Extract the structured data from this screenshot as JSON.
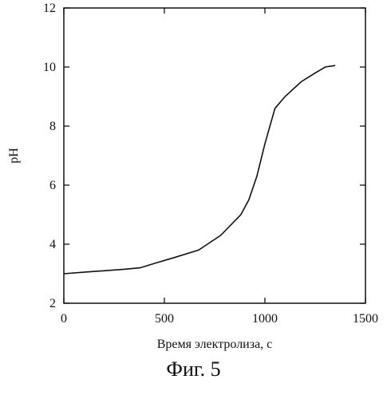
{
  "chart_data": {
    "type": "line",
    "xlabel": "Время электролиза, с",
    "ylabel": "pH",
    "xlim": [
      0,
      1500
    ],
    "ylim": [
      2,
      12
    ],
    "xticks": [
      0,
      500,
      1000,
      1500
    ],
    "yticks": [
      2,
      4,
      6,
      8,
      10,
      12
    ],
    "grid": false,
    "series": [
      {
        "x": [
          0,
          100,
          200,
          300,
          380,
          450,
          550,
          670,
          780,
          880,
          920,
          960,
          1000,
          1050,
          1100,
          1180,
          1250,
          1300,
          1350
        ],
        "y": [
          3.0,
          3.05,
          3.1,
          3.15,
          3.2,
          3.35,
          3.55,
          3.8,
          4.3,
          5.0,
          5.5,
          6.3,
          7.4,
          8.6,
          9.0,
          9.5,
          9.8,
          10.0,
          10.05
        ]
      }
    ]
  },
  "caption": "Фиг. 5",
  "colors": {
    "line": "#111111",
    "axis": "#111111"
  }
}
